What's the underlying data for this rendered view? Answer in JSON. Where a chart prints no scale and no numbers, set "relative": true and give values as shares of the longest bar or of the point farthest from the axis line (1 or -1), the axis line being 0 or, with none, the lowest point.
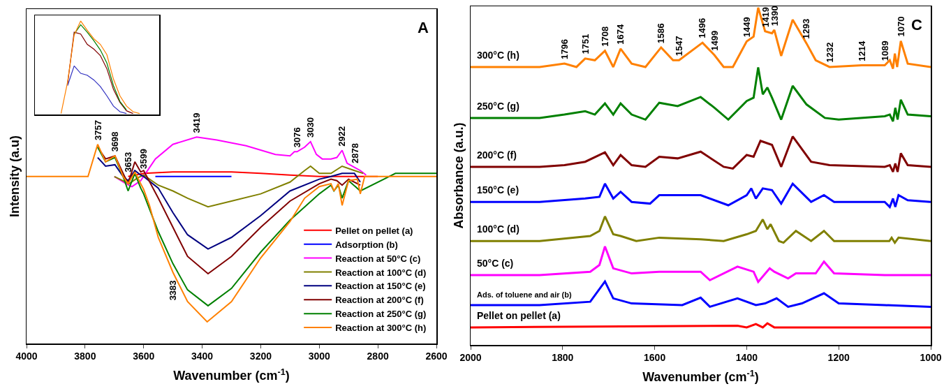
{
  "chart_data": [
    {
      "type": "line",
      "title": "A",
      "xlabel": "Wavenumber (cm$^{-1}$)",
      "ylabel": "Intensity (a.u)",
      "relative": true,
      "xlim": [
        4000,
        2600
      ],
      "xticks": [
        4000,
        3800,
        3600,
        3400,
        3200,
        3000,
        2800,
        2600
      ],
      "tick_labels": "x",
      "legend": "bottom right",
      "annotations": [
        {
          "text": "3757",
          "x": 3757,
          "y": 0.965
        },
        {
          "text": "3698",
          "x": 3698,
          "y": 0.909
        },
        {
          "text": "3653",
          "x": 3653,
          "y": 0.809
        },
        {
          "text": "3599",
          "x": 3599,
          "y": 0.824
        },
        {
          "text": "3419",
          "x": 3419,
          "y": 1
        },
        {
          "text": "3076",
          "x": 3076,
          "y": 0.929
        },
        {
          "text": "3030",
          "x": 3030,
          "y": 0.978
        },
        {
          "text": "2922",
          "x": 2922,
          "y": 0.936
        },
        {
          "text": "2878",
          "x": 2878,
          "y": 0.852
        },
        {
          "text": "3383",
          "x": 3500,
          "y": 0.345
        }
      ],
      "series": [
        {
          "name": "Pellet on pellet (a)",
          "color": "#ff0000",
          "x": [
            3653,
            3599,
            3500,
            3400,
            3300,
            3200,
            3100,
            3000,
            2900,
            2800
          ],
          "values": [
            0.809,
            0.824,
            0.831,
            0.831,
            0.831,
            0.824,
            0.816,
            0.809,
            0.809,
            0.809
          ]
        },
        {
          "name": "Adsorption (b)",
          "color": "#0000ff",
          "x": [
            3560,
            3300
          ],
          "values": [
            0.809,
            0.809
          ]
        },
        {
          "name": "Reaction at 50°C (c)",
          "color": "#ff00ff",
          "x": [
            3700,
            3660,
            3640,
            3610,
            3560,
            3500,
            3419,
            3350,
            3250,
            3150,
            3100,
            3085,
            3076,
            3050,
            3030,
            3010,
            2990,
            2960,
            2940,
            2922,
            2905,
            2878,
            2860,
            2840
          ],
          "values": [
            0.809,
            0.774,
            0.76,
            0.789,
            0.894,
            0.965,
            1,
            0.986,
            0.958,
            0.916,
            0.909,
            0.929,
            0.929,
            0.951,
            0.978,
            0.916,
            0.894,
            0.894,
            0.901,
            0.936,
            0.873,
            0.852,
            0.838,
            0.816
          ]
        },
        {
          "name": "Reaction at 100°C (d)",
          "color": "#808000",
          "x": [
            3700,
            3650,
            3620,
            3600,
            3550,
            3500,
            3450,
            3380,
            3300,
            3200,
            3100,
            3050,
            3030,
            3000,
            2960,
            2922,
            2880,
            2850
          ],
          "values": [
            0.809,
            0.774,
            0.803,
            0.816,
            0.767,
            0.739,
            0.704,
            0.662,
            0.69,
            0.725,
            0.782,
            0.838,
            0.859,
            0.824,
            0.824,
            0.859,
            0.838,
            0.824
          ]
        },
        {
          "name": "Reaction at 150°C (e)",
          "color": "#000080",
          "x": [
            3757,
            3730,
            3698,
            3670,
            3653,
            3630,
            3610,
            3600,
            3550,
            3500,
            3450,
            3380,
            3300,
            3200,
            3100,
            3000,
            2960,
            2922,
            2880,
            2860
          ],
          "values": [
            0.901,
            0.859,
            0.866,
            0.809,
            0.789,
            0.838,
            0.816,
            0.809,
            0.753,
            0.634,
            0.527,
            0.458,
            0.514,
            0.62,
            0.739,
            0.796,
            0.809,
            0.824,
            0.824,
            0.782
          ]
        },
        {
          "name": "Reaction at 200°C (f)",
          "color": "#800000",
          "x": [
            3757,
            3730,
            3698,
            3670,
            3653,
            3630,
            3610,
            3600,
            3550,
            3500,
            3450,
            3380,
            3300,
            3200,
            3100,
            3000,
            2960,
            2940,
            2922,
            2900,
            2860
          ],
          "values": [
            0.951,
            0.894,
            0.909,
            0.824,
            0.774,
            0.88,
            0.831,
            0.838,
            0.704,
            0.563,
            0.422,
            0.338,
            0.422,
            0.563,
            0.69,
            0.774,
            0.796,
            0.789,
            0.767,
            0.796,
            0.767
          ]
        },
        {
          "name": "Reaction at 250°C (g)",
          "color": "#008000",
          "x": [
            3757,
            3730,
            3698,
            3670,
            3653,
            3630,
            3610,
            3600,
            3550,
            3500,
            3450,
            3380,
            3300,
            3200,
            3100,
            3000,
            2960,
            2950,
            2935,
            2922,
            2900,
            2860,
            2740,
            2600
          ],
          "values": [
            0.951,
            0.88,
            0.901,
            0.809,
            0.739,
            0.824,
            0.753,
            0.725,
            0.542,
            0.387,
            0.26,
            0.183,
            0.267,
            0.443,
            0.598,
            0.725,
            0.767,
            0.739,
            0.767,
            0.704,
            0.789,
            0.739,
            0.824,
            0.824
          ]
        },
        {
          "name": "Reaction at 300°C (h)",
          "color": "#ff8000",
          "x": [
            4000,
            3790,
            3757,
            3730,
            3698,
            3670,
            3653,
            3630,
            3610,
            3600,
            3580,
            3550,
            3500,
            3450,
            3383,
            3300,
            3200,
            3100,
            3050,
            3000,
            2960,
            2950,
            2935,
            2922,
            2900,
            2870,
            2860,
            2845,
            2600
          ],
          "values": [
            0.809,
            0.809,
            0.965,
            0.88,
            0.909,
            0.809,
            0.774,
            0.831,
            0.774,
            0.747,
            0.669,
            0.514,
            0.345,
            0.203,
            0.105,
            0.203,
            0.415,
            0.591,
            0.704,
            0.76,
            0.774,
            0.739,
            0.774,
            0.669,
            0.789,
            0.796,
            0.725,
            0.809,
            0.809
          ]
        }
      ]
    },
    {
      "type": "line",
      "relative": true,
      "tick_labels": false,
      "categories": [
        null,
        null,
        null,
        null,
        null,
        null,
        null,
        null,
        null,
        null,
        null,
        null,
        null,
        null,
        null,
        null,
        null,
        null,
        null,
        null
      ],
      "series": [
        {
          "color": "#3030c0",
          "values": [
            null,
            null,
            null,
            null,
            null,
            0.31,
            0.52,
            0.44,
            0.42,
            0.37,
            0.3,
            0.2,
            0.09,
            0.03,
            0.01,
            null,
            null,
            null,
            null,
            null
          ]
        },
        {
          "color": "#800000",
          "values": [
            null,
            null,
            null,
            null,
            null,
            0.33,
            0.88,
            0.86,
            0.75,
            0.7,
            0.63,
            0.49,
            0.27,
            0.13,
            0.04,
            0.01,
            null,
            null,
            null,
            null
          ]
        },
        {
          "color": "#008000",
          "values": [
            null,
            null,
            null,
            null,
            null,
            null,
            0.86,
            0.96,
            0.88,
            0.79,
            0.69,
            0.55,
            0.31,
            0.14,
            0.05,
            null,
            null,
            null,
            null,
            null
          ]
        },
        {
          "color": "#ff8000",
          "values": [
            null,
            null,
            null,
            null,
            0.01,
            0.35,
            0.85,
            1,
            0.9,
            0.81,
            0.75,
            0.64,
            0.38,
            0.2,
            0.09,
            0.03,
            0.01,
            null,
            null,
            null
          ]
        }
      ]
    },
    {
      "type": "line",
      "title": "C",
      "xlabel": "Wavenumber (cm$^{-1}$)",
      "ylabel": "Absorbance (a.u.)",
      "relative": true,
      "xlim": [
        2000,
        1000
      ],
      "xticks": [
        2000,
        1800,
        1600,
        1400,
        1200,
        1000
      ],
      "tick_labels": "x",
      "annotations": [
        {
          "text": "1796",
          "x": 1796,
          "y": 0.834
        },
        {
          "text": "1751",
          "x": 1751,
          "y": 0.849
        },
        {
          "text": "1708",
          "x": 1708,
          "y": 0.872
        },
        {
          "text": "1674",
          "x": 1674,
          "y": 0.878
        },
        {
          "text": "1586",
          "x": 1586,
          "y": 0.882
        },
        {
          "text": "1547",
          "x": 1547,
          "y": 0.844
        },
        {
          "text": "1496",
          "x": 1496,
          "y": 0.896
        },
        {
          "text": "1499",
          "x": 1470,
          "y": 0.859
        },
        {
          "text": "1449",
          "x": 1400,
          "y": 0.9
        },
        {
          "text": "1419",
          "x": 1360,
          "y": 0.93
        },
        {
          "text": "1390",
          "x": 1340,
          "y": 0.934
        },
        {
          "text": "1293",
          "x": 1270,
          "y": 0.894
        },
        {
          "text": "1232",
          "x": 1220,
          "y": 0.824
        },
        {
          "text": "1214",
          "x": 1150,
          "y": 0.829
        },
        {
          "text": "1089",
          "x": 1100,
          "y": 0.829
        },
        {
          "text": "1070",
          "x": 1065,
          "y": 0.901
        }
      ],
      "series": [
        {
          "name": "Pellet on pellet (a)",
          "color": "#ff0000",
          "x": [
            2000,
            1420,
            1400,
            1380,
            1365,
            1355,
            1340,
            1000
          ],
          "values": [
            0.052,
            0.057,
            0.052,
            0.062,
            0.052,
            0.064,
            0.052,
            0.052
          ]
        },
        {
          "name": "Ads. of toluene and air (b)",
          "color": "#0000ff",
          "x": [
            2000,
            1850,
            1740,
            1708,
            1690,
            1650,
            1540,
            1500,
            1480,
            1420,
            1380,
            1360,
            1335,
            1310,
            1280,
            1232,
            1200,
            1100,
            1000
          ],
          "values": [
            0.118,
            0.118,
            0.128,
            0.188,
            0.138,
            0.123,
            0.118,
            0.14,
            0.113,
            0.138,
            0.118,
            0.123,
            0.138,
            0.113,
            0.123,
            0.153,
            0.123,
            0.118,
            0.113
          ]
        },
        {
          "name": "50°C (c)",
          "color": "#ff00ff",
          "x": [
            2000,
            1850,
            1740,
            1720,
            1708,
            1690,
            1650,
            1590,
            1500,
            1480,
            1420,
            1385,
            1375,
            1350,
            1340,
            1310,
            1293,
            1250,
            1232,
            1210,
            1100,
            1000
          ],
          "values": [
            0.207,
            0.207,
            0.217,
            0.237,
            0.292,
            0.227,
            0.212,
            0.217,
            0.217,
            0.192,
            0.232,
            0.217,
            0.187,
            0.227,
            0.217,
            0.197,
            0.212,
            0.212,
            0.247,
            0.212,
            0.207,
            0.207
          ]
        },
        {
          "name": "100°C (d)",
          "color": "#808000",
          "x": [
            2000,
            1850,
            1740,
            1720,
            1708,
            1690,
            1674,
            1640,
            1590,
            1500,
            1450,
            1400,
            1380,
            1365,
            1355,
            1348,
            1330,
            1320,
            1293,
            1260,
            1232,
            1210,
            1090,
            1085,
            1078,
            1070,
            1000
          ],
          "values": [
            0.308,
            0.308,
            0.323,
            0.338,
            0.381,
            0.328,
            0.323,
            0.308,
            0.318,
            0.313,
            0.308,
            0.328,
            0.338,
            0.372,
            0.343,
            0.358,
            0.308,
            0.303,
            0.338,
            0.308,
            0.338,
            0.308,
            0.308,
            0.318,
            0.303,
            0.318,
            0.308
          ]
        },
        {
          "name": "150°C (e)",
          "color": "#0000ff",
          "x": [
            2000,
            1850,
            1751,
            1720,
            1708,
            1690,
            1674,
            1650,
            1610,
            1590,
            1500,
            1440,
            1400,
            1390,
            1380,
            1365,
            1345,
            1325,
            1300,
            1260,
            1232,
            1210,
            1100,
            1089,
            1082,
            1077,
            1070,
            1050,
            1000
          ],
          "values": [
            0.424,
            0.424,
            0.434,
            0.439,
            0.478,
            0.434,
            0.454,
            0.424,
            0.419,
            0.444,
            0.444,
            0.414,
            0.444,
            0.464,
            0.434,
            0.464,
            0.459,
            0.419,
            0.478,
            0.424,
            0.444,
            0.424,
            0.424,
            0.409,
            0.434,
            0.409,
            0.444,
            0.429,
            0.424
          ]
        },
        {
          "name": "200°C (f)",
          "color": "#800000",
          "x": [
            2000,
            1850,
            1796,
            1751,
            1708,
            1690,
            1674,
            1650,
            1620,
            1590,
            1550,
            1500,
            1450,
            1430,
            1400,
            1385,
            1370,
            1345,
            1325,
            1300,
            1260,
            1220,
            1100,
            1089,
            1082,
            1077,
            1072,
            1065,
            1050,
            1000
          ],
          "values": [
            0.528,
            0.528,
            0.533,
            0.543,
            0.571,
            0.533,
            0.563,
            0.533,
            0.528,
            0.558,
            0.553,
            0.573,
            0.528,
            0.523,
            0.563,
            0.558,
            0.605,
            0.593,
            0.528,
            0.618,
            0.543,
            0.533,
            0.528,
            0.533,
            0.513,
            0.538,
            0.513,
            0.568,
            0.533,
            0.528
          ]
        },
        {
          "name": "250°C (g)",
          "color": "#008000",
          "x": [
            2000,
            1850,
            1796,
            1751,
            1730,
            1708,
            1690,
            1674,
            1650,
            1620,
            1590,
            1550,
            1500,
            1470,
            1440,
            1400,
            1385,
            1375,
            1365,
            1355,
            1345,
            1325,
            1300,
            1270,
            1230,
            1200,
            1100,
            1089,
            1082,
            1077,
            1072,
            1065,
            1050,
            1000
          ],
          "values": [
            0.673,
            0.673,
            0.683,
            0.693,
            0.683,
            0.716,
            0.683,
            0.716,
            0.683,
            0.668,
            0.718,
            0.708,
            0.735,
            0.703,
            0.668,
            0.723,
            0.733,
            0.823,
            0.743,
            0.763,
            0.733,
            0.668,
            0.768,
            0.713,
            0.673,
            0.668,
            0.678,
            0.683,
            0.663,
            0.703,
            0.668,
            0.727,
            0.683,
            0.678
          ]
        },
        {
          "name": "300°C (h)",
          "color": "#ff8000",
          "x": [
            2000,
            1850,
            1796,
            1770,
            1751,
            1730,
            1708,
            1690,
            1674,
            1650,
            1620,
            1586,
            1560,
            1547,
            1496,
            1470,
            1450,
            1430,
            1400,
            1385,
            1375,
            1360,
            1345,
            1340,
            1325,
            1300,
            1270,
            1250,
            1220,
            1150,
            1100,
            1089,
            1082,
            1078,
            1073,
            1065,
            1050,
            1000
          ],
          "values": [
            0.824,
            0.824,
            0.834,
            0.824,
            0.849,
            0.844,
            0.872,
            0.824,
            0.878,
            0.834,
            0.824,
            0.882,
            0.844,
            0.844,
            0.896,
            0.859,
            0.824,
            0.824,
            0.9,
            0.914,
            1,
            0.93,
            0.924,
            0.934,
            0.857,
            0.964,
            0.894,
            0.844,
            0.824,
            0.829,
            0.829,
            0.844,
            0.819,
            0.864,
            0.824,
            0.901,
            0.834,
            0.824
          ]
        }
      ]
    }
  ]
}
